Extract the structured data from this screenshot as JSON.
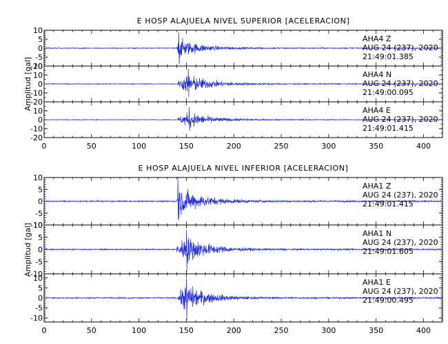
{
  "chart_data": [
    {
      "type": "line",
      "title": "E HOSP ALAJUELA NIVEL SUPERIOR [ACELERACION]",
      "xlabel": "",
      "ylabel": "Amplitud [gal]",
      "xlim": [
        0,
        420
      ],
      "x_ticks": [
        "0",
        "50",
        "100",
        "150",
        "200",
        "250",
        "300",
        "350",
        "400"
      ],
      "grid": false,
      "line_color": "#1f2bd6",
      "panels": [
        {
          "station": "AHA4",
          "component": "Z",
          "date_line": "AUG 24 (237), 2020",
          "time_line": "21:49:01.385",
          "ylim": [
            -10,
            10
          ],
          "y_ticks": [
            "10",
            "5",
            "0",
            "-5",
            "-10"
          ],
          "onset_s": 140,
          "peak_s": 142,
          "peak_pos": 9.0,
          "peak_neg": -9.0,
          "decay_end_s": 215
        },
        {
          "station": "AHA4",
          "component": "N",
          "date_line": "AUG 24 (237), 2020",
          "time_line": "21:49:00.095",
          "ylim": [
            -20,
            20
          ],
          "y_ticks": [
            "20",
            "10",
            "0",
            "-10",
            "-20"
          ],
          "onset_s": 141,
          "peak_s": 152,
          "peak_pos": 17.0,
          "peak_neg": -15.0,
          "decay_end_s": 230
        },
        {
          "station": "AHA4",
          "component": "E",
          "date_line": "AUG 24 (237), 2020",
          "time_line": "21:49:01.415",
          "ylim": [
            -20,
            20
          ],
          "y_ticks": [
            "10",
            "0",
            "-10",
            "-20"
          ],
          "onset_s": 141,
          "peak_s": 153,
          "peak_pos": 14.0,
          "peak_neg": -12.0,
          "decay_end_s": 225
        }
      ]
    },
    {
      "type": "line",
      "title": "E HOSP ALAJUELA NIVEL INFERIOR [ACELERACION]",
      "xlabel": "",
      "ylabel": "Amplitud [gal]",
      "xlim": [
        0,
        420
      ],
      "x_ticks": [
        "0",
        "50",
        "100",
        "150",
        "200",
        "250",
        "300",
        "350",
        "400"
      ],
      "grid": false,
      "line_color": "#1f2bd6",
      "panels": [
        {
          "station": "AHA1",
          "component": "Z",
          "date_line": "AUG 24 (237), 2020",
          "time_line": "21:49:01.415",
          "ylim": [
            -10,
            10
          ],
          "y_ticks": [
            "10",
            "5",
            "0",
            "-5",
            "-10"
          ],
          "onset_s": 140,
          "peak_s": 141,
          "peak_pos": 10.0,
          "peak_neg": -8.0,
          "decay_end_s": 220
        },
        {
          "station": "AHA1",
          "component": "N",
          "date_line": "AUG 24 (237), 2020",
          "time_line": "21:49:01.605",
          "ylim": [
            -10,
            10
          ],
          "y_ticks": [
            "10",
            "5",
            "0",
            "-5",
            "-10"
          ],
          "onset_s": 140,
          "peak_s": 150,
          "peak_pos": 8.0,
          "peak_neg": -9.0,
          "decay_end_s": 225
        },
        {
          "station": "AHA1",
          "component": "E",
          "date_line": "AUG 24 (237), 2020",
          "time_line": "21:49:00.495",
          "ylim": [
            -12,
            12
          ],
          "y_ticks": [
            "10",
            "5",
            "0",
            "-5",
            "-10"
          ],
          "onset_s": 141,
          "peak_s": 150,
          "peak_pos": 10.0,
          "peak_neg": -11.0,
          "decay_end_s": 220
        }
      ]
    }
  ]
}
